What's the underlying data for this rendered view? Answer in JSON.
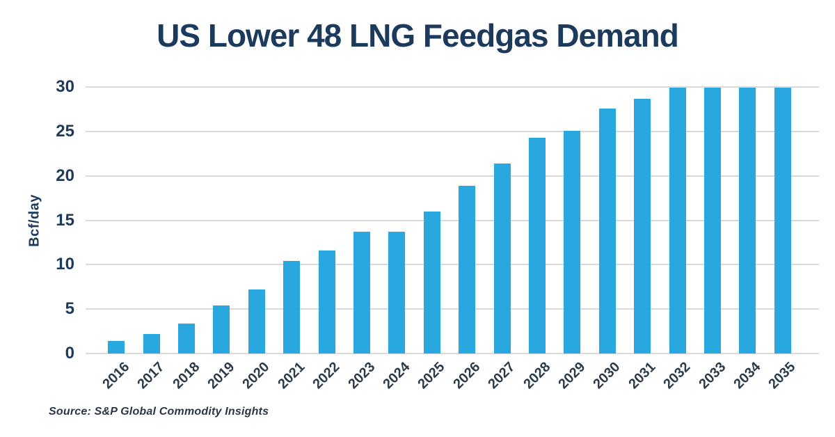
{
  "chart_data": {
    "type": "bar",
    "title": "US Lower 48 LNG Feedgas Demand",
    "xlabel": "",
    "ylabel": "Bcf/day",
    "categories": [
      "2016",
      "2017",
      "2018",
      "2019",
      "2020",
      "2021",
      "2022",
      "2023",
      "2024",
      "2025",
      "2026",
      "2027",
      "2028",
      "2029",
      "2030",
      "2031",
      "2032",
      "2033",
      "2034",
      "2035"
    ],
    "values": [
      1.4,
      2.2,
      3.4,
      5.4,
      7.2,
      10.4,
      11.6,
      13.7,
      13.7,
      16.0,
      18.9,
      21.4,
      24.3,
      25.1,
      27.6,
      28.7,
      29.9,
      29.9,
      29.9,
      29.9
    ],
    "ylim": [
      0,
      30
    ],
    "yticks": [
      0,
      5,
      10,
      15,
      20,
      25,
      30
    ],
    "grid": "horizontal",
    "legend": "none",
    "bar_color": "#29A8E0"
  },
  "source": "Source: S&P Global Commodity Insights",
  "colors": {
    "background": "#FFFFFF",
    "bar": "#29A8E0",
    "title": "#1C3A5C",
    "y_tick_labels": "#1C3A5C",
    "x_tick_labels": "#2C3B49",
    "gridline": "#D9D9D9",
    "source_text": "#2B3644"
  }
}
